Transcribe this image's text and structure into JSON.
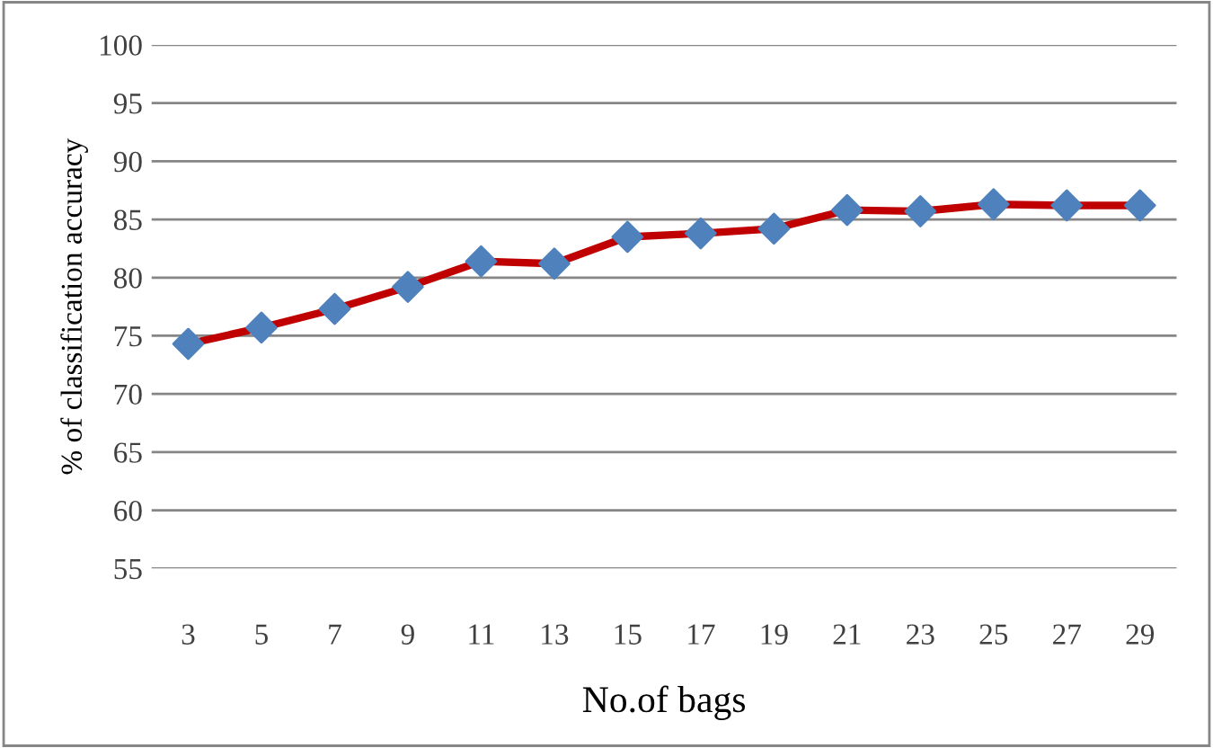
{
  "chart_data": {
    "type": "line",
    "xlabel": "No.of bags",
    "ylabel": "% of classification accuracy",
    "categories": [
      "3",
      "5",
      "7",
      "9",
      "11",
      "13",
      "15",
      "17",
      "19",
      "21",
      "23",
      "25",
      "27",
      "29"
    ],
    "series": [
      {
        "color": "#c00000",
        "colors": [
          "#4f81bd",
          "#4f81bd",
          "#4f81bd",
          "#4f81bd",
          "#4f81bd",
          "#4f81bd",
          "#4f81bd",
          "#4f81bd",
          "#4f81bd",
          "#4f81bd",
          "#4f81bd",
          "#4f81bd",
          "#4f81bd",
          "#4f81bd"
        ],
        "values": [
          74.3,
          75.7,
          77.3,
          79.2,
          81.4,
          81.2,
          83.5,
          83.8,
          84.2,
          85.8,
          85.7,
          86.3,
          86.2,
          86.2
        ]
      }
    ],
    "marker": "diamond",
    "line_style": "solid",
    "ylim": [
      55,
      100
    ],
    "yticks": [
      55,
      60,
      65,
      70,
      75,
      80,
      85,
      90,
      95,
      100
    ],
    "grid": "y",
    "legend": false
  }
}
